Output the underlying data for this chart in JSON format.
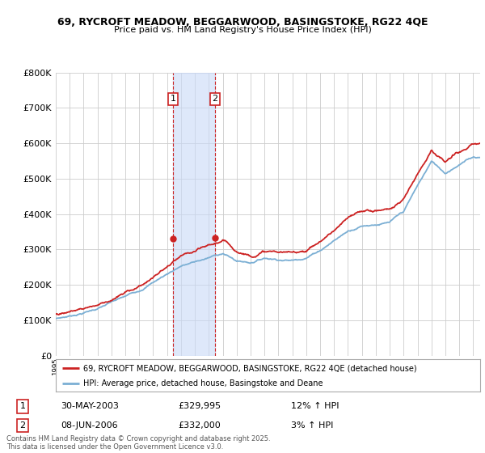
{
  "title1": "69, RYCROFT MEADOW, BEGGARWOOD, BASINGSTOKE, RG22 4QE",
  "title2": "Price paid vs. HM Land Registry's House Price Index (HPI)",
  "legend_line1": "69, RYCROFT MEADOW, BEGGARWOOD, BASINGSTOKE, RG22 4QE (detached house)",
  "legend_line2": "HPI: Average price, detached house, Basingstoke and Deane",
  "sale1_date": "30-MAY-2003",
  "sale1_price": "£329,995",
  "sale1_hpi": "12% ↑ HPI",
  "sale2_date": "08-JUN-2006",
  "sale2_price": "£332,000",
  "sale2_hpi": "3% ↑ HPI",
  "footnote": "Contains HM Land Registry data © Crown copyright and database right 2025.\nThis data is licensed under the Open Government Licence v3.0.",
  "sale1_year": 2003.42,
  "sale2_year": 2006.44,
  "hpi_line_color": "#7bafd4",
  "price_line_color": "#cc2222",
  "shade_color": "#c9daf8",
  "shade_alpha": 0.6,
  "grid_color": "#cccccc",
  "background_color": "#ffffff",
  "ylim_min": 0,
  "ylim_max": 800000,
  "xlim_min": 1995,
  "xlim_max": 2025.5
}
